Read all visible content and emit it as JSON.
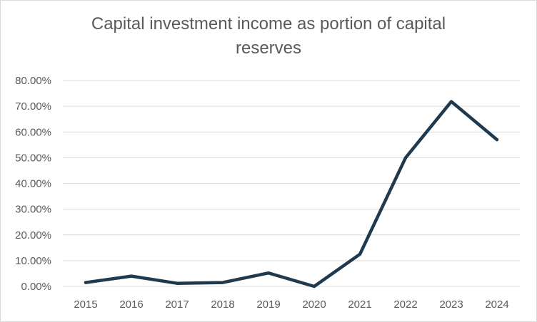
{
  "chart_data": {
    "type": "line",
    "title": "Capital investment income as portion of capital reserves",
    "xlabel": "",
    "ylabel": "",
    "categories": [
      "2015",
      "2016",
      "2017",
      "2018",
      "2019",
      "2020",
      "2021",
      "2022",
      "2023",
      "2024"
    ],
    "series": [
      {
        "values": [
          1.5,
          4.0,
          1.2,
          1.5,
          5.2,
          0.0,
          12.5,
          50.0,
          71.8,
          57.0
        ]
      }
    ],
    "ylim": [
      0,
      80
    ],
    "yticks": [
      0,
      10,
      20,
      30,
      40,
      50,
      60,
      70,
      80
    ],
    "ytick_labels": [
      "0.00%",
      "10.00%",
      "20.00%",
      "30.00%",
      "40.00%",
      "50.00%",
      "60.00%",
      "70.00%",
      "80.00%"
    ],
    "grid": true,
    "legend": "none",
    "line_color": "#1f3a4f",
    "grid_color": "#d9d9d9",
    "text_color": "#595959"
  }
}
